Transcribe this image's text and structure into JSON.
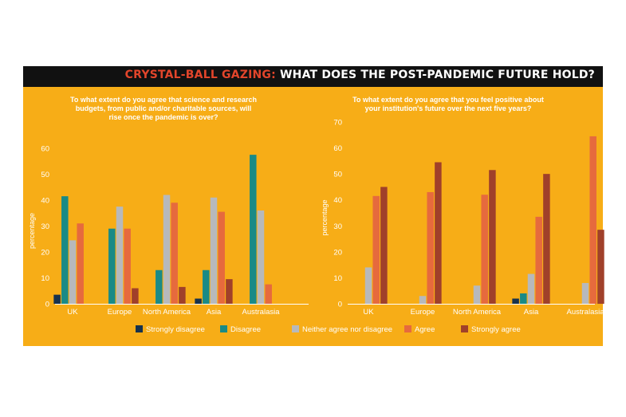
{
  "banner": {
    "accent": "CRYSTAL-BALL GAZING:",
    "rest": " WHAT DOES THE POST-PANDEMIC FUTURE HOLD?"
  },
  "colors": {
    "background": "#f7ad17",
    "banner": "#111111",
    "accent": "#e2452b",
    "Strongly disagree": "#17324d",
    "Disagree": "#1a8a86",
    "Neither agree nor disagree": "#b7b9bc",
    "Agree": "#e66a3d",
    "Strongly agree": "#a0402a"
  },
  "legend": [
    "Strongly disagree",
    "Disagree",
    "Neither agree nor disagree",
    "Agree",
    "Strongly agree"
  ],
  "chart_data": [
    {
      "type": "bar",
      "title_lines": [
        "To what extent do you agree that science and research",
        "budgets, from public and/or charitable sources, will",
        "rise once the pandemic is over?"
      ],
      "ylabel": "percentage",
      "ylim": [
        0,
        60
      ],
      "yticks": [
        0,
        10,
        20,
        30,
        40,
        50,
        60
      ],
      "categories": [
        "UK",
        "Europe",
        "North America",
        "Asia",
        "Australasia"
      ],
      "series": [
        {
          "name": "Strongly disagree",
          "values": [
            3.5,
            0,
            0,
            2,
            0
          ]
        },
        {
          "name": "Disagree",
          "values": [
            41.5,
            29,
            13,
            13,
            57.5
          ]
        },
        {
          "name": "Neither agree nor disagree",
          "values": [
            24.5,
            37.5,
            42,
            41,
            36
          ]
        },
        {
          "name": "Agree",
          "values": [
            31,
            29,
            39,
            35.5,
            7.5
          ]
        },
        {
          "name": "Strongly agree",
          "values": [
            0,
            6,
            6.5,
            9.5,
            0
          ]
        }
      ]
    },
    {
      "type": "bar",
      "title_lines": [
        "To what extent do you agree that you feel positive about",
        "your institution's future over the next five years?"
      ],
      "ylabel": "percentage",
      "ylim": [
        0,
        70
      ],
      "yticks": [
        0,
        10,
        20,
        30,
        40,
        50,
        60,
        70
      ],
      "categories": [
        "UK",
        "Europe",
        "North America",
        "Asia",
        "Australasia"
      ],
      "series": [
        {
          "name": "Strongly disagree",
          "values": [
            0,
            0,
            0,
            2,
            0
          ]
        },
        {
          "name": "Disagree",
          "values": [
            0,
            0,
            0,
            4,
            0
          ]
        },
        {
          "name": "Neither agree nor disagree",
          "values": [
            14,
            3,
            7,
            11.5,
            8
          ]
        },
        {
          "name": "Agree",
          "values": [
            41.5,
            43,
            42,
            33.5,
            64.5
          ]
        },
        {
          "name": "Strongly agree",
          "values": [
            45,
            54.5,
            51.5,
            50,
            28.5
          ]
        }
      ]
    }
  ]
}
